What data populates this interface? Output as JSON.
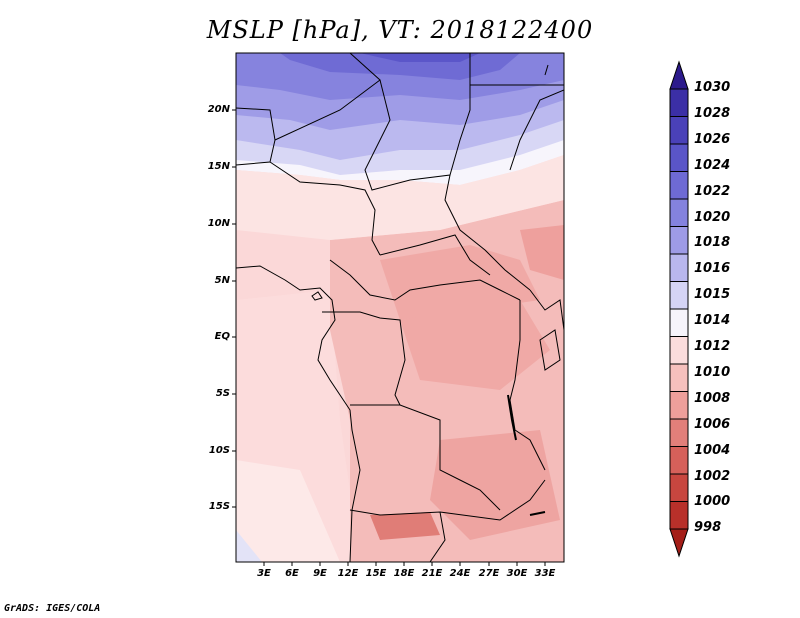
{
  "title": "MSLP [hPa], VT: 2018122400",
  "credit": "GrADS: IGES/COLA",
  "map": {
    "lat_labels": [
      "20N",
      "15N",
      "10N",
      "5N",
      "EQ",
      "5S",
      "10S",
      "15S"
    ],
    "lon_labels": [
      "3E",
      "6E",
      "9E",
      "12E",
      "15E",
      "18E",
      "21E",
      "24E",
      "27E",
      "30E",
      "33E"
    ]
  },
  "colorbar": {
    "labels": [
      "1030",
      "1028",
      "1026",
      "1024",
      "1022",
      "1020",
      "1018",
      "1016",
      "1015",
      "1014",
      "1012",
      "1010",
      "1008",
      "1006",
      "1004",
      "1002",
      "1000",
      "998"
    ],
    "colors": [
      "#2c1a8c",
      "#3b2fa6",
      "#4a41b8",
      "#5a55c8",
      "#6e6ad4",
      "#8482de",
      "#9e9be6",
      "#b9b7ee",
      "#d5d4f5",
      "#f6f4fb",
      "#fbdddd",
      "#f6c0bd",
      "#ee9f9b",
      "#e27f7a",
      "#d6605a",
      "#c8463f",
      "#b8302a",
      "#a41e18"
    ]
  }
}
